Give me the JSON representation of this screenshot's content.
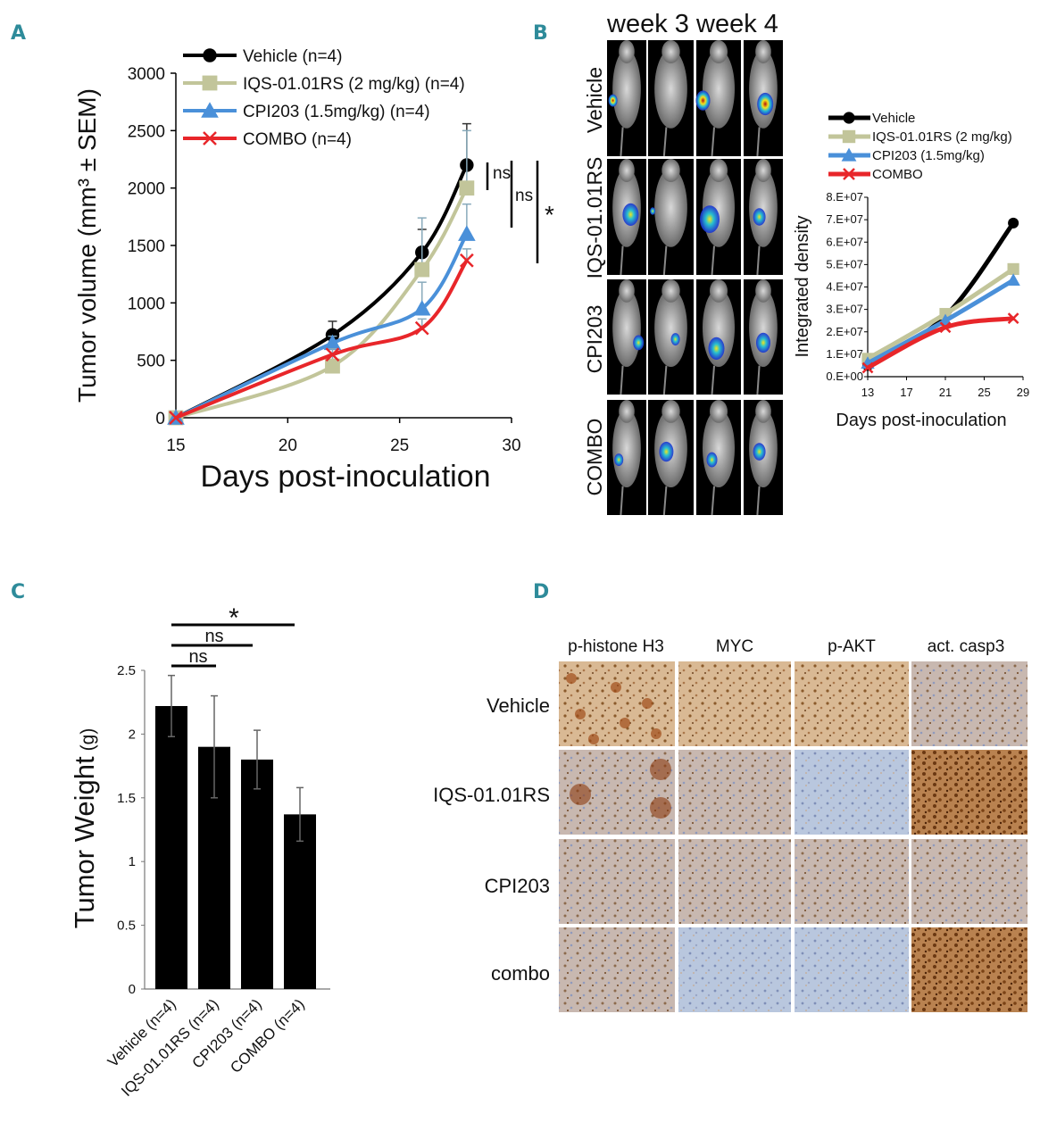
{
  "panels": {
    "a": "A",
    "b": "B",
    "c": "C",
    "d": "D"
  },
  "colors": {
    "vehicle": "#000000",
    "iqs": "#c2c59a",
    "cpi": "#4a90d9",
    "combo": "#e8262a",
    "teal": "#2e8b9a"
  },
  "chart_data": [
    {
      "id": "A",
      "type": "line",
      "xlabel": "Days post-inoculation",
      "ylabel": "Tumor volume (mm³ ± SEM)",
      "xlim": [
        15,
        30
      ],
      "ylim": [
        0,
        3000
      ],
      "xticks": [
        15,
        20,
        25,
        30
      ],
      "yticks": [
        0,
        500,
        1000,
        1500,
        2000,
        2500,
        3000
      ],
      "x": [
        15,
        22,
        26,
        28
      ],
      "series": [
        {
          "key": "vehicle",
          "name": "Vehicle (n=4)",
          "values": [
            0,
            720,
            1440,
            2200
          ],
          "err": [
            0,
            120,
            200,
            360
          ]
        },
        {
          "key": "iqs",
          "name": "IQS-01.01RS (2 mg/kg) (n=4)",
          "values": [
            0,
            450,
            1290,
            2000
          ],
          "err": [
            0,
            100,
            450,
            500
          ]
        },
        {
          "key": "cpi",
          "name": "CPI203 (1.5mg/kg) (n=4)",
          "values": [
            0,
            650,
            950,
            1600
          ],
          "err": [
            0,
            60,
            230,
            260
          ]
        },
        {
          "key": "combo",
          "name": "COMBO (n=4)",
          "values": [
            0,
            550,
            780,
            1370
          ],
          "err": [
            0,
            50,
            80,
            100
          ]
        }
      ],
      "annotations": [
        "ns",
        "ns",
        "*"
      ]
    },
    {
      "id": "B",
      "type": "line",
      "xlabel": "Days post-inoculation",
      "ylabel": "Integrated density",
      "xlim": [
        13,
        29
      ],
      "ylim": [
        0,
        80000000
      ],
      "xticks": [
        13,
        17,
        21,
        25,
        29
      ],
      "yticks": [
        "0.E+00",
        "1.E+07",
        "2.E+07",
        "3.E+07",
        "4.E+07",
        "5.E+07",
        "6.E+07",
        "7.E+07",
        "8.E+07"
      ],
      "x": [
        13,
        21,
        28
      ],
      "series": [
        {
          "key": "vehicle",
          "name": "Vehicle",
          "values": [
            5000000,
            27000000,
            68500000
          ]
        },
        {
          "key": "iqs",
          "name": "IQS-01.01RS (2 mg/kg)",
          "values": [
            8000000,
            28000000,
            48000000
          ]
        },
        {
          "key": "cpi",
          "name": "CPI203 (1.5mg/kg)",
          "values": [
            6000000,
            25000000,
            43000000
          ]
        },
        {
          "key": "combo",
          "name": "COMBO",
          "values": [
            4000000,
            22000000,
            26000000
          ]
        }
      ]
    },
    {
      "id": "C",
      "type": "bar",
      "ylabel": "Tumor Weight",
      "ylabel_unit": "(g)",
      "ylim": [
        0,
        2.5
      ],
      "yticks": [
        "0",
        "0.5",
        "1",
        "1.5",
        "2",
        "2.5"
      ],
      "categories": [
        "Vehicle (n=4)",
        "IQS-01.01RS (n=4)",
        "CPI203 (n=4)",
        "COMBO (n=4)"
      ],
      "values": [
        2.22,
        1.9,
        1.8,
        1.37
      ],
      "err": [
        0.24,
        0.4,
        0.23,
        0.21
      ],
      "annotations": [
        "*",
        "ns",
        "ns"
      ]
    }
  ],
  "imaging": {
    "weeks": [
      "week 3",
      "week 4"
    ],
    "groups": [
      "Vehicle",
      "IQS-01.01RS",
      "CPI203",
      "COMBO"
    ]
  },
  "ihc": {
    "columns": [
      "p-histone H3",
      "MYC",
      "p-AKT",
      "act. casp3"
    ],
    "rows": [
      "Vehicle",
      "IQS-01.01RS",
      "CPI203",
      "combo"
    ]
  }
}
